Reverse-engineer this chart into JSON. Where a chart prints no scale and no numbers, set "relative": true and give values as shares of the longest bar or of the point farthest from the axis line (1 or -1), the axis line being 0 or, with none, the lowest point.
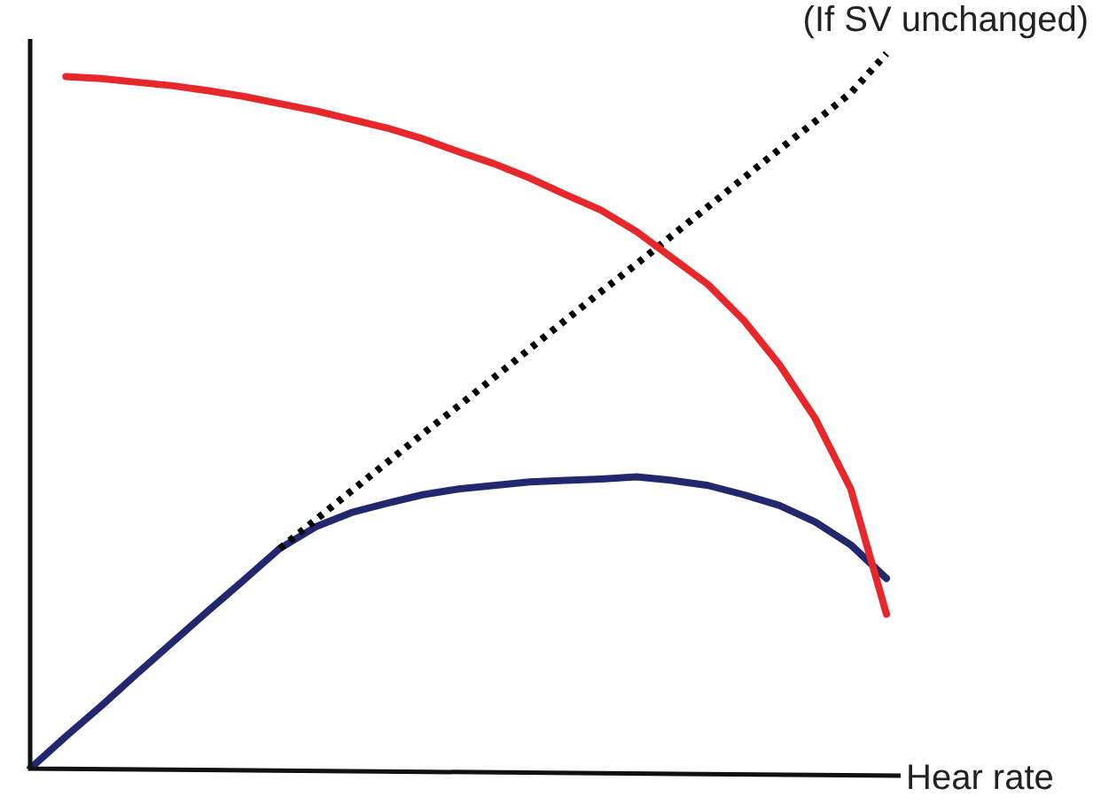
{
  "chart_data": {
    "type": "line",
    "relative": true,
    "xlabel": "Hear rate",
    "annotations": [
      "(If SV unchanged)"
    ],
    "marker": "none",
    "categories": [
      null,
      null,
      null,
      null,
      null,
      null,
      null,
      null,
      null,
      null,
      null,
      null,
      null,
      null,
      null,
      null,
      null,
      null,
      null,
      null,
      null,
      null,
      null,
      null,
      null
    ],
    "series": [
      {
        "color": "#e8272a",
        "line_style": "solid",
        "values": [
          null,
          0.968,
          0.965,
          0.96,
          0.955,
          0.948,
          0.94,
          0.93,
          0.92,
          0.908,
          0.896,
          0.881,
          0.863,
          0.846,
          0.826,
          0.803,
          0.781,
          0.751,
          0.714,
          0.677,
          0.627,
          0.565,
          0.49,
          0.391,
          0.216
        ]
      },
      {
        "color": "#000000",
        "line_style": "dotted",
        "values": [
          null,
          null,
          null,
          null,
          null,
          null,
          null,
          0.308,
          0.348,
          0.388,
          0.428,
          0.468,
          0.507,
          0.547,
          0.587,
          0.627,
          0.667,
          0.706,
          0.746,
          0.786,
          0.826,
          0.866,
          0.905,
          0.945,
          1.0
        ]
      },
      {
        "color": "#22276e",
        "line_style": "solid",
        "values": [
          0,
          0.045,
          0.088,
          0.133,
          0.177,
          0.221,
          0.264,
          0.308,
          0.338,
          0.358,
          0.371,
          0.383,
          0.391,
          0.396,
          0.401,
          0.403,
          0.405,
          0.408,
          0.403,
          0.396,
          0.383,
          0.368,
          0.345,
          0.313,
          0.266
        ]
      }
    ]
  }
}
